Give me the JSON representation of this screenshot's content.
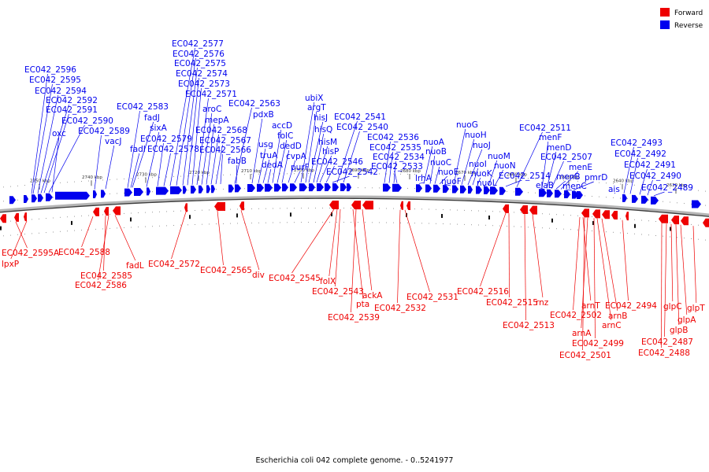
{
  "title": "Escherichia coli 042 complete genome. - 0..5241977",
  "legend": [
    {
      "label": "Forward",
      "color": "#ee0000"
    },
    {
      "label": "Reverse",
      "color": "#0000ee"
    }
  ],
  "colors": {
    "forward": "#ee0000",
    "reverse": "#0000ee",
    "backbone": "#7a7a7a"
  },
  "scale_ticks": [
    "2750 kbp",
    "2740 kbp",
    "2730 kbp",
    "2720 kbp",
    "2710 kbp",
    "2700 kbp",
    "2690 kbp",
    "2680 kbp",
    "2670 kbp",
    "2660 kbp",
    "2650 kbp",
    "2640 kbp",
    "2630 kbp"
  ],
  "reverse_labels": [
    "EC042_2596",
    "EC042_2595",
    "EC042_2594",
    "EC042_2592",
    "EC042_2591",
    "EC042_2590",
    "oxc",
    "EC042_2589",
    "vacJ",
    "EC042_2583",
    "fadJ",
    "fadI",
    "sixA",
    "EC042_2579",
    "EC042_2578",
    "EC042_2577",
    "EC042_2576",
    "EC042_2575",
    "EC042_2574",
    "EC042_2573",
    "EC042_2571",
    "aroC",
    "mepA",
    "EC042_2568",
    "EC042_2567",
    "EC042_2566",
    "EC042_2563",
    "pdxB",
    "fabB",
    "usg",
    "truA",
    "dedA",
    "accD",
    "folC",
    "dedD",
    "cvpA",
    "purF",
    "ubiX",
    "argT",
    "hisJ",
    "hisQ",
    "hisM",
    "hisP",
    "EC042_2546",
    "EC042_2542",
    "EC042_2541",
    "EC042_2540",
    "EC042_2536",
    "EC042_2535",
    "EC042_2534",
    "EC042_2533",
    "lrhA",
    "nuoA",
    "nuoB",
    "nuoC",
    "nuoE",
    "nuoF",
    "nuoG",
    "nuoH",
    "nuoJ",
    "nuoI",
    "nuoK",
    "nuoL",
    "nuoM",
    "nuoN",
    "EC042_2514",
    "EC042_2511",
    "menF",
    "menD",
    "elaB",
    "EC042_2507",
    "menB",
    "menE",
    "menC",
    "pmrD",
    "ais",
    "EC042_2493",
    "EC042_2492",
    "EC042_2491",
    "EC042_2490",
    "EC042_2489"
  ],
  "forward_labels": [
    "EC042_2595A",
    "lpxP",
    "EC042_2588",
    "EC042_2585",
    "EC042_2586",
    "fadL",
    "EC042_2572",
    "EC042_2565",
    "div",
    "EC042_2545",
    "folX",
    "EC042_2543",
    "ackA",
    "pta",
    "EC042_2539",
    "EC042_2532",
    "EC042_2531",
    "EC042_2516",
    "EC042_2515",
    "rnz",
    "EC042_2513",
    "arnT",
    "EC042_2502",
    "arnA",
    "EC042_2499",
    "EC042_2501",
    "arnC",
    "arnB",
    "EC042_2494",
    "glpC",
    "EC042_2487",
    "EC042_2488",
    "glpB",
    "glpA",
    "glpT"
  ]
}
